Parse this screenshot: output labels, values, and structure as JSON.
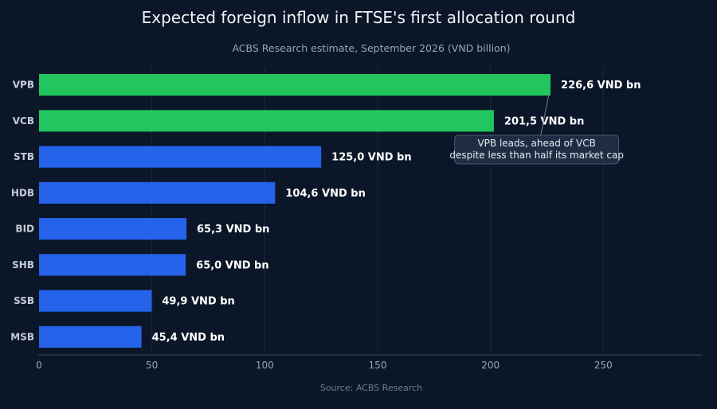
{
  "chart_data": {
    "type": "bar",
    "orientation": "horizontal",
    "title": "Expected foreign inflow in FTSE's first allocation round",
    "subtitle": "ACBS Research estimate, September 2026 (VND billion)",
    "source": "Source: ACBS Research",
    "categories": [
      "VPB",
      "VCB",
      "STB",
      "HDB",
      "BID",
      "SHB",
      "SSB",
      "MSB"
    ],
    "values": [
      226.6,
      201.5,
      125.0,
      104.6,
      65.3,
      65.0,
      49.9,
      45.4
    ],
    "value_labels": [
      "226,6 VND bn",
      "201,5 VND bn",
      "125,0 VND bn",
      "104,6 VND bn",
      "65,3 VND bn",
      "65,0 VND bn",
      "49,9 VND bn",
      "45,4 VND bn"
    ],
    "colors": [
      "#22c55e",
      "#22c55e",
      "#2563eb",
      "#2563eb",
      "#2563eb",
      "#2563eb",
      "#2563eb",
      "#2563eb"
    ],
    "xlim": [
      0,
      294
    ],
    "x_ticks": [
      0,
      50,
      100,
      150,
      200,
      250
    ],
    "x_tick_labels": [
      "0",
      "50",
      "100",
      "150",
      "200",
      "250"
    ],
    "grid": true,
    "annotation": {
      "lines": [
        "VPB leads, ahead of VCB",
        "despite less than half its market cap"
      ],
      "target_category": "VPB"
    }
  }
}
